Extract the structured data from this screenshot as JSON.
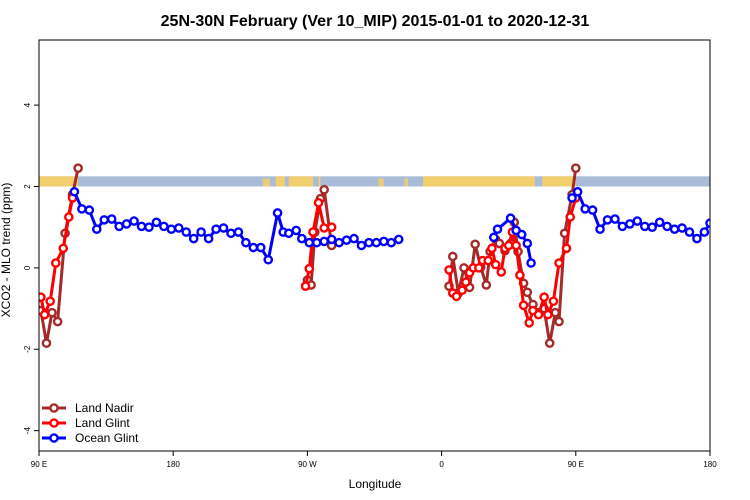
{
  "chart_data": {
    "type": "line",
    "title": "25N-30N February (Ver 10_MIP)   2015-01-01 to 2020-12-31",
    "xlabel": "Longitude",
    "ylabel": "XCO2 - MLO trend (ppm)",
    "xlim": [
      -90,
      270
    ],
    "ylim": [
      -4.5,
      5.6
    ],
    "x_ticks": [
      {
        "value": -90,
        "label": "90 E"
      },
      {
        "value": -18,
        "label": "180"
      },
      {
        "value": 54,
        "label": "90 W"
      },
      {
        "value": 126,
        "label": "0"
      },
      {
        "value": 198,
        "label": "90 E"
      },
      {
        "value": 270,
        "label": "180"
      }
    ],
    "y_ticks": [
      {
        "value": -4,
        "label": "-4"
      },
      {
        "value": -2,
        "label": "-2"
      },
      {
        "value": 0,
        "label": "0"
      },
      {
        "value": 2,
        "label": "2"
      },
      {
        "value": 4,
        "label": "4"
      }
    ],
    "grid": false,
    "legend_position": "bottom-left",
    "land_mask_band": {
      "y_range": [
        2.0,
        2.25
      ],
      "land_color": "#f2cf6e",
      "ocean_color": "#a8bcd8"
    },
    "series": [
      {
        "name": "Land Nadir",
        "color": "#a52a2a",
        "points": [
          [
            -89,
            -1.05
          ],
          [
            -86,
            -1.85
          ],
          [
            -83,
            -1.1
          ],
          [
            -80,
            -1.32
          ],
          [
            -76,
            0.85
          ],
          [
            -72,
            1.8
          ],
          [
            -69,
            2.45
          ],
          [
            54,
            -0.3
          ],
          [
            56,
            -0.42
          ],
          [
            58,
            0.88
          ],
          [
            61,
            1.7
          ],
          [
            63,
            1.92
          ],
          [
            67,
            0.55
          ],
          [
            130,
            -0.45
          ],
          [
            132,
            0.28
          ],
          [
            135,
            -0.62
          ],
          [
            138,
            0.0
          ],
          [
            141,
            -0.48
          ],
          [
            144,
            0.58
          ],
          [
            147,
            0.02
          ],
          [
            150,
            -0.42
          ],
          [
            152,
            0.4
          ],
          [
            155,
            0.7
          ],
          [
            157,
            0.6
          ],
          [
            160,
            0.42
          ],
          [
            163,
            0.6
          ],
          [
            165,
            1.12
          ],
          [
            167,
            0.4
          ],
          [
            170,
            -0.38
          ],
          [
            172,
            -0.6
          ],
          [
            175,
            -0.9
          ],
          [
            178,
            -1.1
          ],
          [
            181,
            -1.0
          ],
          [
            184,
            -1.85
          ],
          [
            187,
            -1.1
          ],
          [
            189,
            -1.32
          ],
          [
            192,
            0.85
          ],
          [
            196,
            1.8
          ],
          [
            198,
            2.45
          ]
        ]
      },
      {
        "name": "Land Glint",
        "color": "#ff0000",
        "points": [
          [
            -89,
            -0.72
          ],
          [
            -87,
            -1.15
          ],
          [
            -84,
            -0.82
          ],
          [
            -81,
            0.12
          ],
          [
            -77,
            0.48
          ],
          [
            -74,
            1.25
          ],
          [
            -72,
            1.72
          ],
          [
            53,
            -0.45
          ],
          [
            55,
            -0.02
          ],
          [
            57,
            0.88
          ],
          [
            60,
            1.6
          ],
          [
            63,
            0.98
          ],
          [
            67,
            1.0
          ],
          [
            130,
            -0.05
          ],
          [
            132,
            -0.62
          ],
          [
            134,
            -0.7
          ],
          [
            137,
            -0.55
          ],
          [
            139,
            -0.35
          ],
          [
            141,
            -0.12
          ],
          [
            143,
            0.0
          ],
          [
            146,
            0.0
          ],
          [
            148,
            0.18
          ],
          [
            151,
            0.18
          ],
          [
            153,
            0.48
          ],
          [
            155,
            0.08
          ],
          [
            158,
            -0.1
          ],
          [
            160,
            0.48
          ],
          [
            162,
            0.55
          ],
          [
            164,
            0.88
          ],
          [
            166,
            0.55
          ],
          [
            168,
            -0.18
          ],
          [
            170,
            -0.92
          ],
          [
            173,
            -1.35
          ],
          [
            175,
            -1.05
          ],
          [
            178,
            -1.15
          ],
          [
            181,
            -0.72
          ],
          [
            183,
            -1.15
          ],
          [
            186,
            -0.82
          ],
          [
            189,
            0.12
          ],
          [
            193,
            0.48
          ],
          [
            195,
            1.25
          ],
          [
            198,
            1.72
          ]
        ]
      },
      {
        "name": "Ocean Glint",
        "color": "#0000ff",
        "points": [
          [
            -71,
            1.87
          ],
          [
            -67,
            1.45
          ],
          [
            -63,
            1.42
          ],
          [
            -59,
            0.95
          ],
          [
            -55,
            1.18
          ],
          [
            -51,
            1.2
          ],
          [
            -47,
            1.02
          ],
          [
            -43,
            1.08
          ],
          [
            -39,
            1.15
          ],
          [
            -35,
            1.02
          ],
          [
            -31,
            1.0
          ],
          [
            -27,
            1.12
          ],
          [
            -23,
            1.02
          ],
          [
            -19,
            0.95
          ],
          [
            -15,
            0.98
          ],
          [
            -11,
            0.88
          ],
          [
            -7,
            0.72
          ],
          [
            -3,
            0.88
          ],
          [
            1,
            0.72
          ],
          [
            5,
            0.95
          ],
          [
            9,
            0.98
          ],
          [
            13,
            0.85
          ],
          [
            17,
            0.88
          ],
          [
            21,
            0.62
          ],
          [
            25,
            0.5
          ],
          [
            29,
            0.5
          ],
          [
            33,
            0.2
          ],
          [
            38,
            1.35
          ],
          [
            41,
            0.88
          ],
          [
            44,
            0.85
          ],
          [
            48,
            0.92
          ],
          [
            51,
            0.72
          ],
          [
            55,
            0.62
          ],
          [
            59,
            0.62
          ],
          [
            63,
            0.65
          ],
          [
            67,
            0.7
          ],
          [
            71,
            0.62
          ],
          [
            75,
            0.68
          ],
          [
            79,
            0.72
          ],
          [
            83,
            0.55
          ],
          [
            87,
            0.62
          ],
          [
            91,
            0.62
          ],
          [
            95,
            0.65
          ],
          [
            99,
            0.62
          ],
          [
            103,
            0.7
          ],
          [
            154,
            0.75
          ],
          [
            156,
            0.95
          ],
          [
            163,
            1.22
          ],
          [
            166,
            0.92
          ],
          [
            169,
            0.82
          ],
          [
            172,
            0.6
          ],
          [
            174,
            0.12
          ],
          [
            196,
            1.72
          ],
          [
            199,
            1.87
          ],
          [
            203,
            1.45
          ],
          [
            207,
            1.42
          ],
          [
            211,
            0.95
          ],
          [
            215,
            1.18
          ],
          [
            219,
            1.2
          ],
          [
            223,
            1.02
          ],
          [
            227,
            1.08
          ],
          [
            231,
            1.15
          ],
          [
            235,
            1.02
          ],
          [
            239,
            1.0
          ],
          [
            243,
            1.12
          ],
          [
            247,
            1.02
          ],
          [
            251,
            0.95
          ],
          [
            255,
            0.98
          ],
          [
            259,
            0.88
          ],
          [
            263,
            0.72
          ],
          [
            267,
            0.88
          ],
          [
            270,
            1.1
          ]
        ]
      }
    ]
  }
}
